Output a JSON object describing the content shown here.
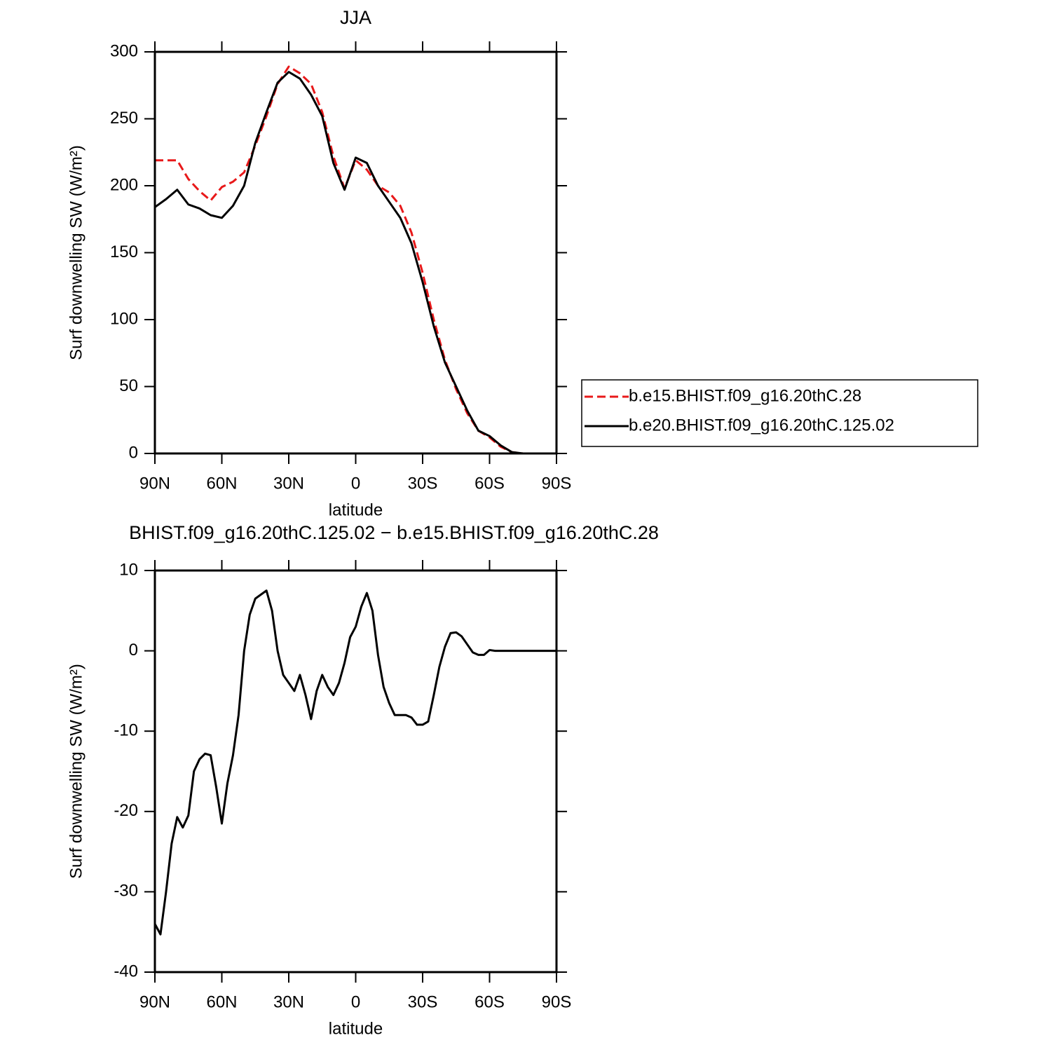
{
  "chart_data": [
    {
      "type": "line",
      "title": "JJA",
      "xlabel": "latitude",
      "ylabel": "Surf downwelling SW (W/m²)",
      "x": [
        90,
        85,
        80,
        75,
        70,
        65,
        60,
        55,
        50,
        45,
        40,
        35,
        30,
        25,
        20,
        15,
        10,
        5,
        0,
        -5,
        -10,
        -15,
        -20,
        -25,
        -30,
        -35,
        -40,
        -45,
        -50,
        -55,
        -60,
        -65,
        -70,
        -75,
        -80,
        -85,
        -90
      ],
      "xlim": [
        90,
        -90
      ],
      "xticks": [
        {
          "value": 90,
          "label": "90N"
        },
        {
          "value": 60,
          "label": "60N"
        },
        {
          "value": 30,
          "label": "30N"
        },
        0,
        {
          "value": -30,
          "label": "30S"
        },
        {
          "value": -60,
          "label": "60S"
        },
        {
          "value": -90,
          "label": "90S"
        }
      ],
      "ylim": [
        0,
        300
      ],
      "yticks": [
        0,
        50,
        100,
        150,
        200,
        250,
        300
      ],
      "legend": "right",
      "series": [
        {
          "name": "b.e15.BHIST.f09_g16.20thC.28",
          "color": "#e8191a",
          "dash": "dashed",
          "values": [
            219,
            219,
            219,
            205,
            196,
            189,
            199,
            203,
            210,
            230,
            252,
            276,
            289,
            284,
            276,
            255,
            222,
            198,
            219,
            212,
            200,
            195,
            185,
            165,
            135,
            100,
            70,
            48,
            30,
            17,
            12,
            5,
            1,
            0,
            0,
            0,
            0
          ]
        },
        {
          "name": "b.e20.BHIST.f09_g16.20thC.125.02",
          "color": "#000000",
          "dash": "solid",
          "values": [
            184,
            190,
            197,
            186,
            183,
            178,
            176,
            185,
            200,
            232,
            255,
            277,
            285,
            280,
            268,
            252,
            217,
            197,
            221,
            217,
            200,
            188,
            176,
            157,
            128,
            95,
            68,
            50,
            32,
            17,
            13,
            6,
            1,
            0,
            0,
            0,
            0
          ]
        }
      ]
    },
    {
      "type": "line",
      "title": "BHIST.f09_g16.20thC.125.02 − b.e15.BHIST.f09_g16.20thC.28",
      "xlabel": "latitude",
      "ylabel": "Surf downwelling SW (W/m²)",
      "x": [
        90,
        87.5,
        85,
        82.5,
        80,
        77.5,
        75,
        72.5,
        70,
        67.5,
        65,
        62.5,
        60,
        57.5,
        55,
        52.5,
        50,
        47.5,
        45,
        42.5,
        40,
        37.5,
        35,
        32.5,
        30,
        27.5,
        25,
        22.5,
        20,
        17.5,
        15,
        12.5,
        10,
        7.5,
        5,
        2.5,
        0,
        -2.5,
        -5,
        -7.5,
        -10,
        -12.5,
        -15,
        -17.5,
        -20,
        -22.5,
        -25,
        -27.5,
        -30,
        -32.5,
        -35,
        -37.5,
        -40,
        -42.5,
        -45,
        -47.5,
        -50,
        -52.5,
        -55,
        -57.5,
        -60,
        -62.5,
        -65,
        -67.5,
        -70,
        -72.5,
        -75,
        -77.5,
        -80,
        -82.5,
        -85,
        -87.5,
        -90
      ],
      "xlim": [
        90,
        -90
      ],
      "xticks": [
        {
          "value": 90,
          "label": "90N"
        },
        {
          "value": 60,
          "label": "60N"
        },
        {
          "value": 30,
          "label": "30N"
        },
        0,
        {
          "value": -30,
          "label": "30S"
        },
        {
          "value": -60,
          "label": "60S"
        },
        {
          "value": -90,
          "label": "90S"
        }
      ],
      "ylim": [
        -40,
        10
      ],
      "yticks": [
        -40,
        -30,
        -20,
        -10,
        0,
        10
      ],
      "color": "#000000",
      "values": [
        -34,
        -35.3,
        -30,
        -24,
        -20.7,
        -22,
        -20.5,
        -15,
        -13.5,
        -12.8,
        -13,
        -17,
        -21.5,
        -16.5,
        -13,
        -8,
        0,
        4.5,
        6.5,
        7,
        7.5,
        5,
        0,
        -3,
        -4,
        -5,
        -3,
        -5.5,
        -8.5,
        -5,
        -3,
        -4.5,
        -5.5,
        -4,
        -1.5,
        1.7,
        3,
        5.5,
        7.2,
        5,
        -0.5,
        -4.5,
        -6.5,
        -8,
        -8,
        -8,
        -8.3,
        -9.2,
        -9.2,
        -8.8,
        -5.5,
        -2,
        0.5,
        2.2,
        2.3,
        1.8,
        0.8,
        -0.2,
        -0.5,
        -0.5,
        0.1,
        0,
        0,
        0,
        0,
        0,
        0,
        0,
        0,
        0,
        0,
        0,
        0
      ]
    }
  ]
}
